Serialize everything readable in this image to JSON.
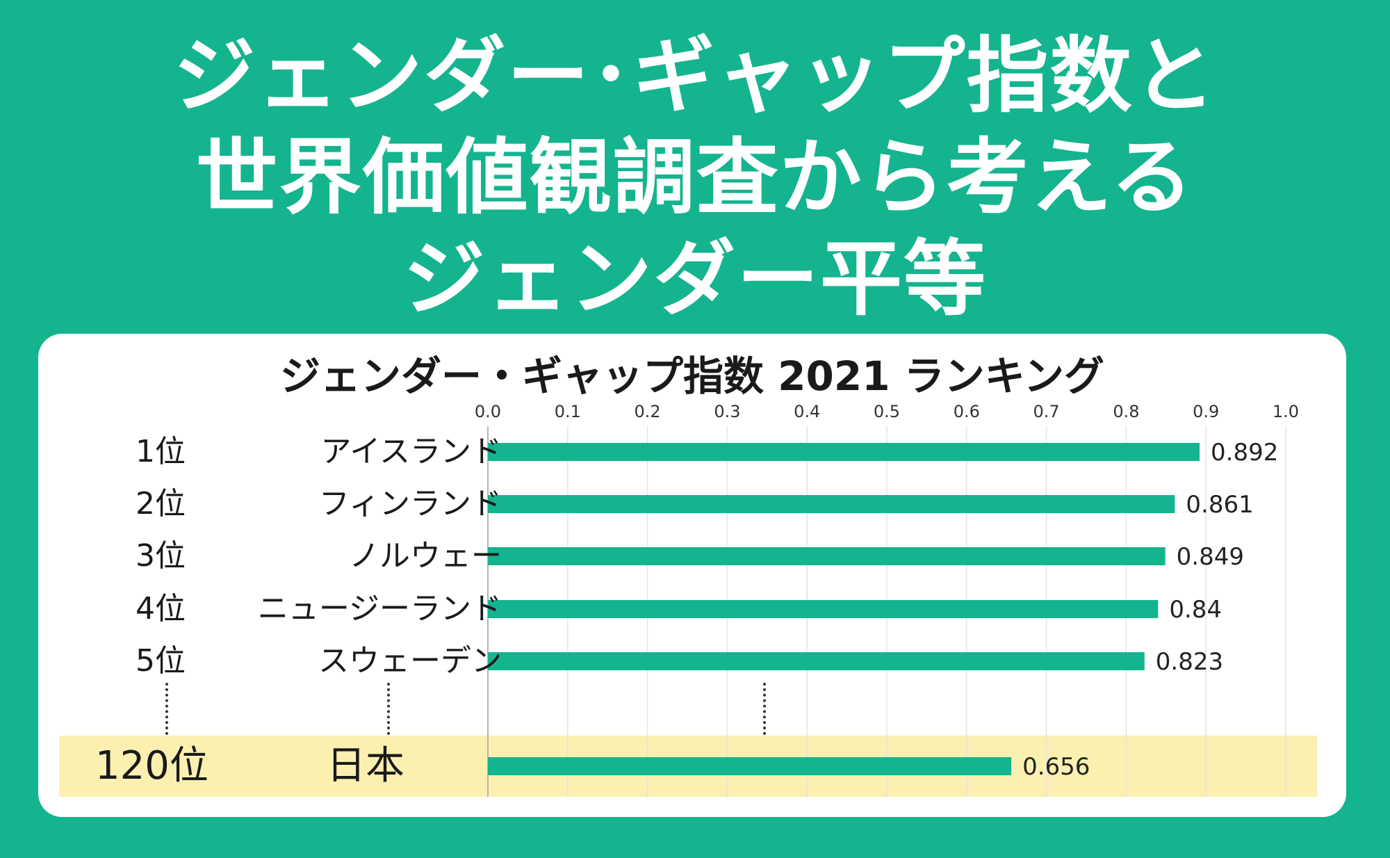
{
  "headline": {
    "line1": "ジェンダー･ギャップ指数と",
    "line2": "世界価値観調査から考える",
    "line3": "ジェンダー平等"
  },
  "colors": {
    "background": "#14b48f",
    "bar": "#14b48f",
    "highlight": "#fbf0b0",
    "card": "#ffffff"
  },
  "chart_data": {
    "type": "bar",
    "orientation": "horizontal",
    "title": "ジェンダー・ギャップ指数 2021 ランキング",
    "xlim": [
      0.0,
      1.0
    ],
    "ticks": [
      "0.0",
      "0.1",
      "0.2",
      "0.3",
      "0.4",
      "0.5",
      "0.6",
      "0.7",
      "0.8",
      "0.9",
      "1.0"
    ],
    "grid": true,
    "rows": [
      {
        "rank": "1位",
        "country": "アイスランド",
        "value": 0.892,
        "label": "0.892"
      },
      {
        "rank": "2位",
        "country": "フィンランド",
        "value": 0.861,
        "label": "0.861"
      },
      {
        "rank": "3位",
        "country": "ノルウェー",
        "value": 0.849,
        "label": "0.849"
      },
      {
        "rank": "4位",
        "country": "ニュージーランド",
        "value": 0.84,
        "label": "0.84"
      },
      {
        "rank": "5位",
        "country": "スウェーデン",
        "value": 0.823,
        "label": "0.823"
      },
      {
        "rank": "120位",
        "country": "日本",
        "value": 0.656,
        "label": "0.656",
        "highlighted": true
      }
    ]
  }
}
